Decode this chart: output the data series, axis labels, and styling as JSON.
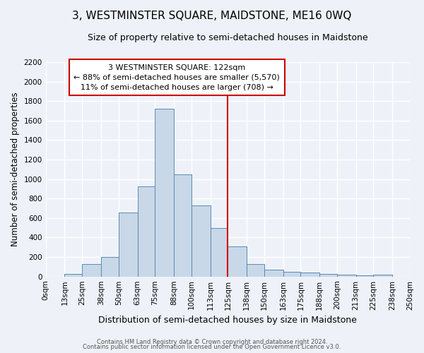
{
  "title": "3, WESTMINSTER SQUARE, MAIDSTONE, ME16 0WQ",
  "subtitle": "Size of property relative to semi-detached houses in Maidstone",
  "xlabel": "Distribution of semi-detached houses by size in Maidstone",
  "ylabel": "Number of semi-detached properties",
  "bin_edges": [
    0,
    13,
    25,
    38,
    50,
    63,
    75,
    88,
    100,
    113,
    125,
    138,
    150,
    163,
    175,
    188,
    200,
    213,
    225,
    238,
    250
  ],
  "bar_heights": [
    0,
    25,
    130,
    200,
    660,
    925,
    1725,
    1050,
    730,
    500,
    310,
    125,
    70,
    45,
    40,
    25,
    20,
    15,
    20,
    0
  ],
  "bar_color": "#c8d8e8",
  "bar_edge_color": "#5a8ab5",
  "vline_x": 125,
  "vline_color": "#cc0000",
  "annotation_text": "3 WESTMINSTER SQUARE: 122sqm\n← 88% of semi-detached houses are smaller (5,570)\n11% of semi-detached houses are larger (708) →",
  "annotation_box_color": "#ffffff",
  "annotation_box_edge": "#cc0000",
  "ylim": [
    0,
    2200
  ],
  "yticks": [
    0,
    200,
    400,
    600,
    800,
    1000,
    1200,
    1400,
    1600,
    1800,
    2000,
    2200
  ],
  "background_color": "#eef2f8",
  "plot_background_color": "#eef2f8",
  "grid_color": "#ffffff",
  "footer_line1": "Contains HM Land Registry data © Crown copyright and database right 2024.",
  "footer_line2": "Contains public sector information licensed under the Open Government Licence v3.0.",
  "title_fontsize": 11,
  "subtitle_fontsize": 9,
  "tick_fontsize": 7.5,
  "annot_fontsize": 8,
  "ylabel_fontsize": 8.5,
  "xlabel_fontsize": 9
}
